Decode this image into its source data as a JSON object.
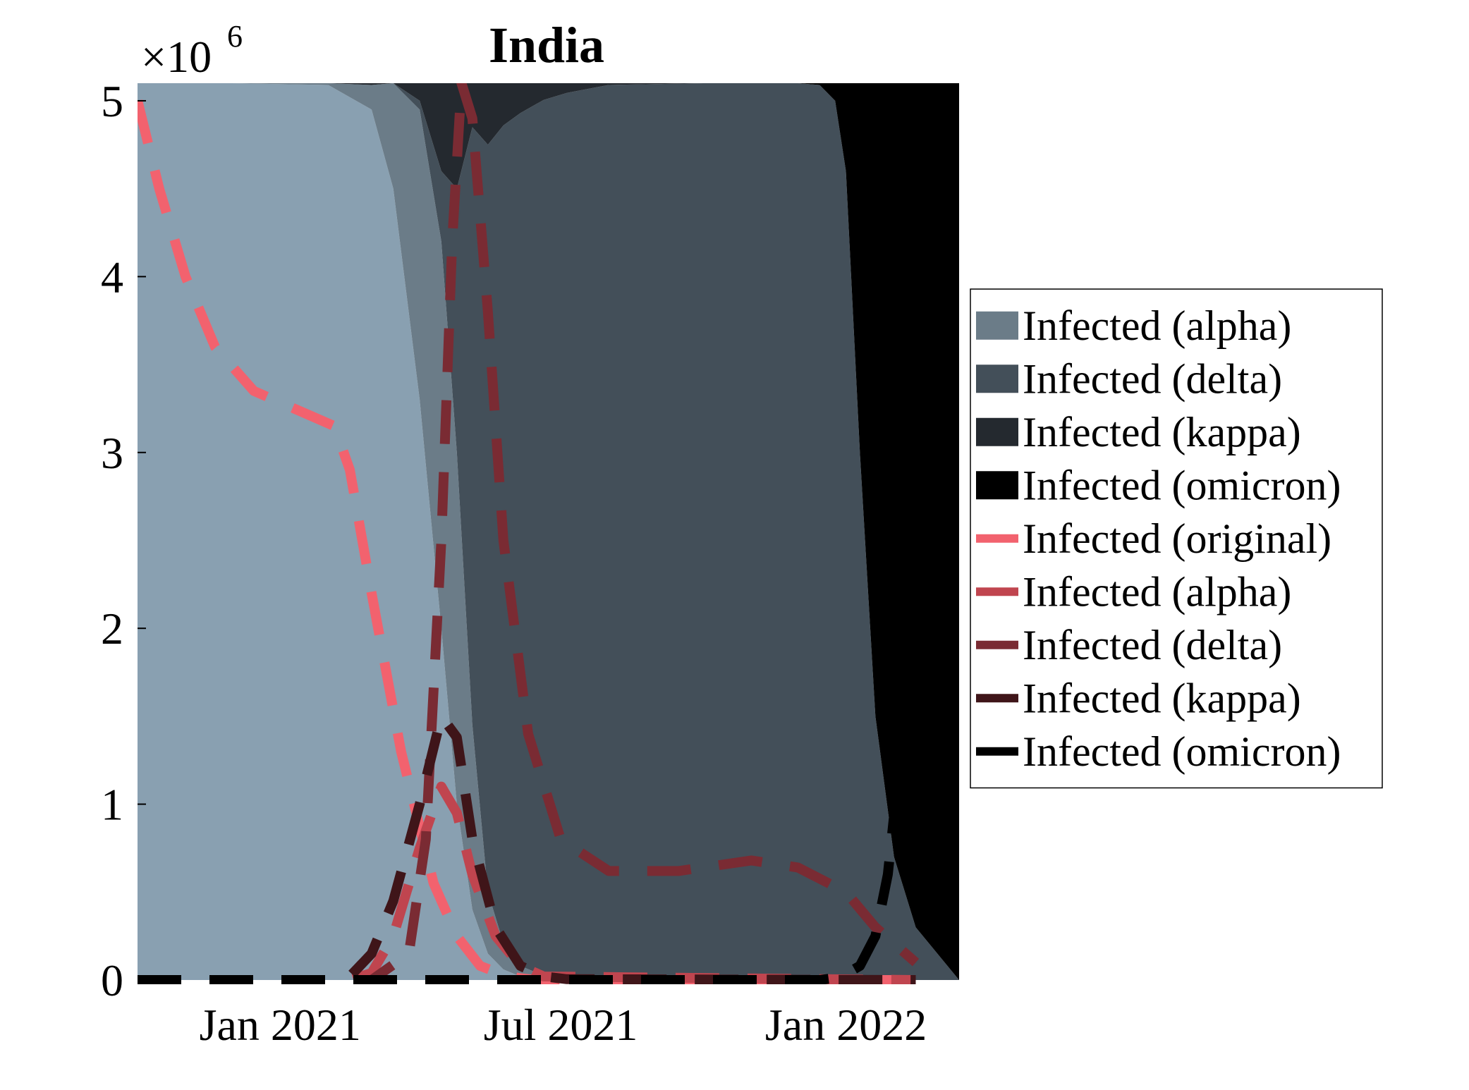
{
  "chart_data": {
    "type": "area",
    "title": "India",
    "y_multiplier": "×10",
    "y_multiplier_exp": "6",
    "xlabel": "",
    "ylabel": "",
    "ylim": [
      0,
      5100000
    ],
    "xlim": [
      "2020-10-01",
      "2022-03-15"
    ],
    "y_ticks": [
      {
        "value": 0,
        "label": "0"
      },
      {
        "value": 1000000,
        "label": "1"
      },
      {
        "value": 2000000,
        "label": "2"
      },
      {
        "value": 3000000,
        "label": "3"
      },
      {
        "value": 4000000,
        "label": "4"
      },
      {
        "value": 5000000,
        "label": "5"
      }
    ],
    "x_ticks": [
      {
        "date": "2021-01-01",
        "label": "Jan 2021"
      },
      {
        "date": "2021-07-01",
        "label": "Jul 2021"
      },
      {
        "date": "2022-01-01",
        "label": "Jan 2022"
      }
    ],
    "grid": false,
    "legend_position": "right",
    "stacked_areas": {
      "x": [
        "2020-10-01",
        "2020-12-01",
        "2021-02-01",
        "2021-03-01",
        "2021-03-15",
        "2021-04-01",
        "2021-04-15",
        "2021-04-25",
        "2021-05-05",
        "2021-05-15",
        "2021-05-25",
        "2021-06-05",
        "2021-06-20",
        "2021-07-05",
        "2021-08-01",
        "2021-10-01",
        "2021-12-01",
        "2021-12-15",
        "2021-12-25",
        "2022-01-01",
        "2022-01-10",
        "2022-01-20",
        "2022-02-01",
        "2022-02-15",
        "2022-03-15"
      ],
      "series": [
        {
          "name": "Infected (original)",
          "color": "#89a0b1",
          "values": [
            5100000,
            5100000,
            5090000,
            4950000,
            4500000,
            3300000,
            2000000,
            1000000,
            400000,
            150000,
            60000,
            20000,
            5000,
            0,
            0,
            0,
            0,
            0,
            0,
            0,
            0,
            0,
            0,
            0,
            0
          ]
        },
        {
          "name": "Infected (alpha)",
          "color": "#6b7c88",
          "values": [
            0,
            0,
            10000,
            140000,
            600000,
            1650000,
            2200000,
            2000000,
            1050000,
            350000,
            150000,
            60000,
            20000,
            5000,
            0,
            0,
            0,
            0,
            0,
            0,
            0,
            0,
            0,
            0,
            0
          ]
        },
        {
          "name": "Infected (delta)",
          "color": "#434f59",
          "values": [
            0,
            0,
            0,
            0,
            0,
            50000,
            400000,
            1500000,
            3400000,
            4250000,
            4650000,
            4850000,
            4980000,
            5040000,
            5090000,
            5100000,
            5100000,
            5090000,
            5000000,
            4600000,
            3000000,
            1500000,
            700000,
            300000,
            0
          ]
        },
        {
          "name": "Infected (kappa)",
          "color": "#24292f",
          "values": [
            0,
            0,
            0,
            10000,
            0,
            100000,
            500000,
            600000,
            250000,
            350000,
            240000,
            170000,
            95000,
            55000,
            10000,
            0,
            0,
            0,
            0,
            0,
            0,
            0,
            0,
            0,
            0
          ]
        },
        {
          "name": "Infected (omicron)",
          "color": "#000000",
          "values": [
            0,
            0,
            0,
            0,
            0,
            0,
            0,
            0,
            0,
            0,
            0,
            0,
            0,
            0,
            0,
            0,
            0,
            10000,
            100000,
            500000,
            2100000,
            3600000,
            4400000,
            4800000,
            5100000
          ]
        }
      ]
    },
    "lines": {
      "style": "dashed",
      "series": [
        {
          "name": "Infected (original)",
          "color": "#f2626e",
          "x": [
            "2020-10-01",
            "2020-10-15",
            "2020-11-01",
            "2020-11-20",
            "2020-12-15",
            "2021-01-10",
            "2021-02-05",
            "2021-02-15",
            "2021-03-01",
            "2021-03-20",
            "2021-04-10",
            "2021-04-25",
            "2021-05-10",
            "2021-05-25",
            "2021-06-05",
            "2021-06-15",
            "2022-02-15"
          ],
          "values": [
            5000000,
            4500000,
            4000000,
            3600000,
            3350000,
            3250000,
            3150000,
            2900000,
            2200000,
            1300000,
            550000,
            250000,
            80000,
            30000,
            10000,
            0,
            0
          ]
        },
        {
          "name": "Infected (alpha)",
          "color": "#c0454f",
          "x": [
            "2020-10-01",
            "2021-02-15",
            "2021-03-01",
            "2021-03-15",
            "2021-04-01",
            "2021-04-15",
            "2021-04-25",
            "2021-05-05",
            "2021-05-20",
            "2021-06-05",
            "2021-06-20",
            "2022-02-15"
          ],
          "values": [
            0,
            0,
            40000,
            250000,
            750000,
            1100000,
            950000,
            600000,
            250000,
            80000,
            20000,
            0
          ]
        },
        {
          "name": "Infected (delta)",
          "color": "#7a2b33",
          "x": [
            "2020-10-01",
            "2021-03-01",
            "2021-03-25",
            "2021-04-05",
            "2021-04-15",
            "2021-04-22",
            "2021-04-28",
            "2021-05-05",
            "2021-05-15",
            "2021-05-25",
            "2021-06-10",
            "2021-07-01",
            "2021-08-01",
            "2021-09-15",
            "2021-11-01",
            "2021-12-01",
            "2022-01-01",
            "2022-01-20",
            "2022-02-15"
          ],
          "values": [
            0,
            0,
            150000,
            800000,
            2500000,
            4200000,
            5100000,
            4900000,
            3800000,
            2500000,
            1400000,
            800000,
            620000,
            620000,
            680000,
            640000,
            500000,
            300000,
            100000
          ]
        },
        {
          "name": "Infected (kappa)",
          "color": "#3f1519",
          "x": [
            "2020-10-01",
            "2021-02-01",
            "2021-02-15",
            "2021-03-01",
            "2021-03-15",
            "2021-04-01",
            "2021-04-15",
            "2021-04-25",
            "2021-05-05",
            "2021-05-20",
            "2021-06-05",
            "2021-06-20",
            "2021-07-05",
            "2022-02-15"
          ],
          "values": [
            0,
            0,
            20000,
            150000,
            450000,
            1000000,
            1500000,
            1380000,
            800000,
            300000,
            80000,
            20000,
            5000,
            0
          ]
        },
        {
          "name": "Infected (omicron)",
          "color": "#000000",
          "x": [
            "2020-10-01",
            "2021-12-15",
            "2021-12-28",
            "2022-01-10",
            "2022-01-20",
            "2022-01-28",
            "2022-02-03",
            "2022-02-08"
          ],
          "values": [
            0,
            0,
            15000,
            80000,
            250000,
            600000,
            1100000,
            2000000
          ]
        }
      ]
    },
    "legend": [
      {
        "label": "Infected (alpha)",
        "color": "#6b7c88",
        "kind": "patch"
      },
      {
        "label": "Infected (delta)",
        "color": "#434f59",
        "kind": "patch"
      },
      {
        "label": "Infected (kappa)",
        "color": "#24292f",
        "kind": "patch"
      },
      {
        "label": "Infected (omicron)",
        "color": "#000000",
        "kind": "patch"
      },
      {
        "label": "Infected (original)",
        "color": "#f2626e",
        "kind": "line"
      },
      {
        "label": "Infected (alpha)",
        "color": "#c0454f",
        "kind": "line"
      },
      {
        "label": "Infected (delta)",
        "color": "#7a2b33",
        "kind": "line"
      },
      {
        "label": "Infected (kappa)",
        "color": "#3f1519",
        "kind": "line"
      },
      {
        "label": "Infected (omicron)",
        "color": "#000000",
        "kind": "line"
      }
    ]
  }
}
